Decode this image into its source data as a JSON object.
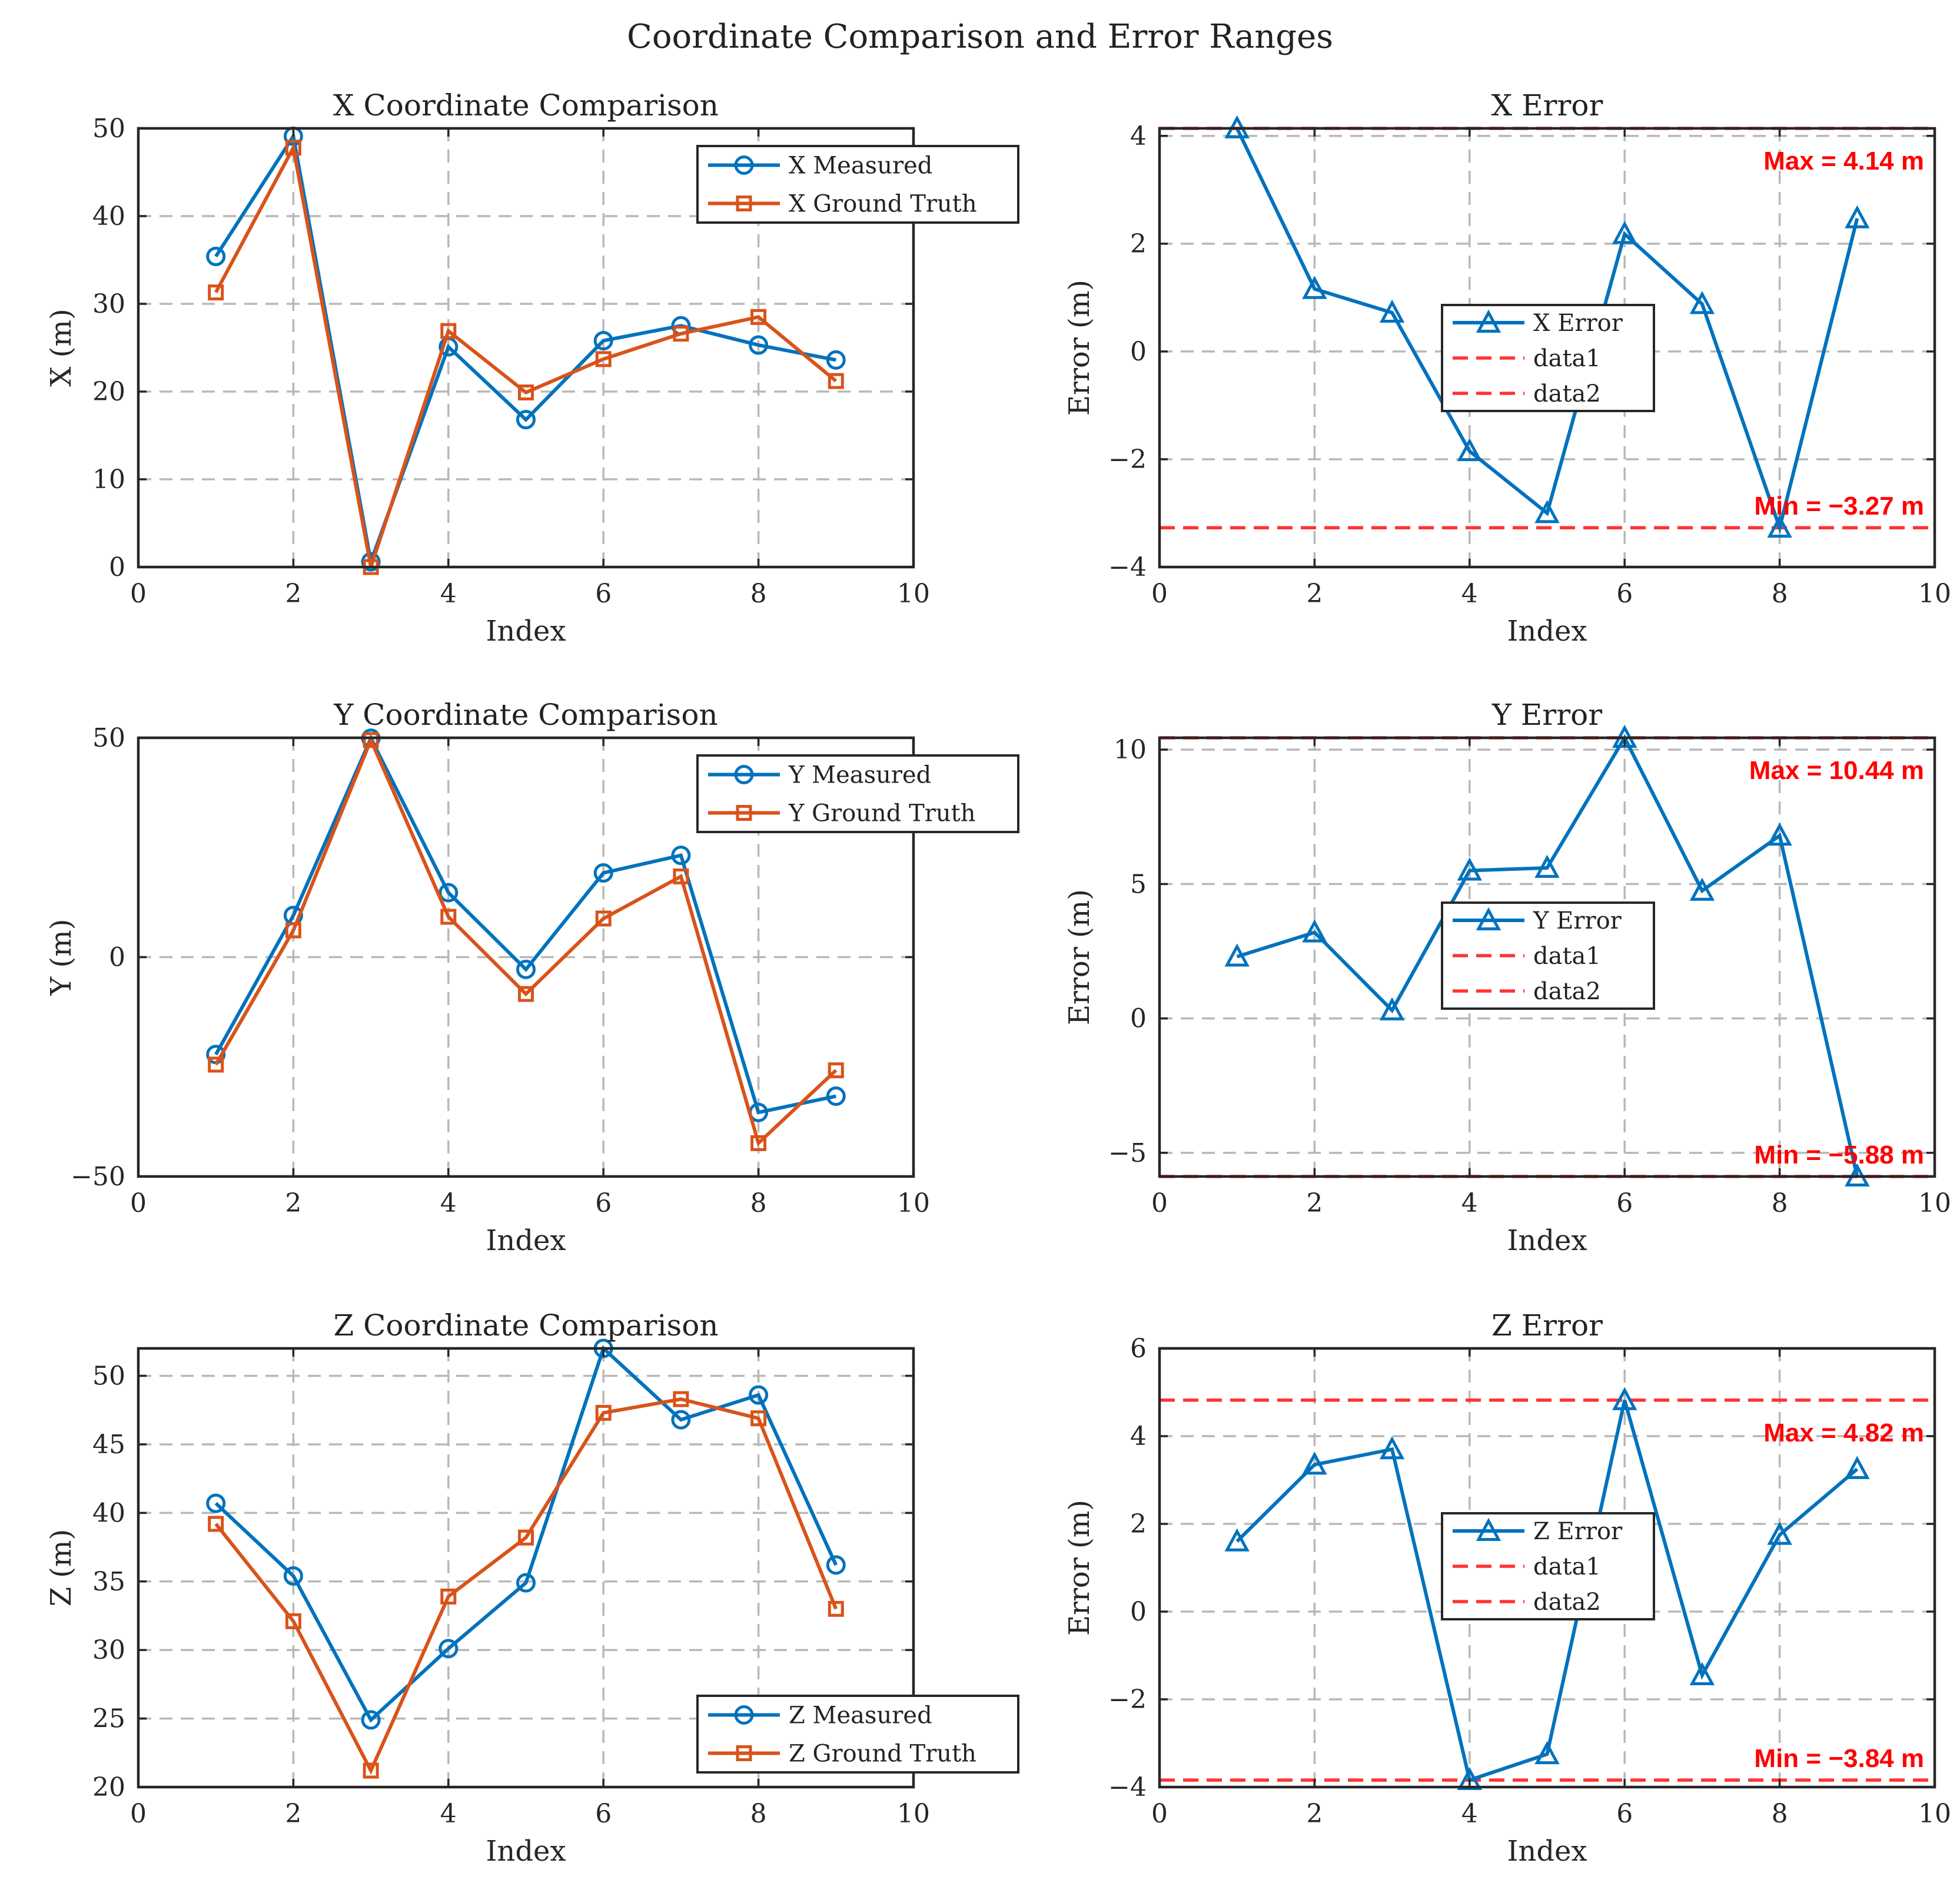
{
  "figure_title": "Coordinate Comparison and Error Ranges",
  "colors": {
    "measured": "#0072BD",
    "truth": "#D95319",
    "error": "#0072BD",
    "ref": "#ff3333",
    "annot": "#ff0000",
    "grid": "#b8b8b8"
  },
  "chart_data": [
    {
      "id": "x-compare",
      "type": "line",
      "title": "X Coordinate Comparison",
      "xlabel": "Index",
      "ylabel": "X (m)",
      "xlim": [
        0,
        10
      ],
      "ylim": [
        0,
        50
      ],
      "xticks": [
        0,
        2,
        4,
        6,
        8,
        10
      ],
      "yticks": [
        0,
        10,
        20,
        30,
        40,
        50
      ],
      "ytick_labels": [
        "0",
        "10",
        "20",
        "30",
        "40",
        "50"
      ],
      "legend_position": "top-right",
      "x": [
        1,
        2,
        3,
        4,
        5,
        6,
        7,
        8,
        9
      ],
      "series": [
        {
          "name": "X Measured",
          "marker": "circle",
          "color": "#0072BD",
          "values": [
            35.4,
            49.1,
            0.6,
            25.1,
            16.8,
            25.8,
            27.5,
            25.3,
            23.6
          ]
        },
        {
          "name": "X Ground Truth",
          "marker": "square",
          "color": "#D95319",
          "values": [
            31.3,
            47.8,
            0.0,
            26.9,
            19.9,
            23.7,
            26.6,
            28.5,
            21.2
          ]
        }
      ]
    },
    {
      "id": "x-error",
      "type": "line",
      "title": "X Error",
      "xlabel": "Index",
      "ylabel": "Error (m)",
      "xlim": [
        0,
        10
      ],
      "ylim": [
        -4,
        4.14
      ],
      "xticks": [
        0,
        2,
        4,
        6,
        8,
        10
      ],
      "yticks": [
        -4,
        -2,
        0,
        2,
        4
      ],
      "ytick_labels": [
        "−4",
        "−2",
        "0",
        "2",
        "4"
      ],
      "legend_position": "center",
      "x": [
        1,
        2,
        3,
        4,
        5,
        6,
        7,
        8,
        9
      ],
      "series": [
        {
          "name": "X Error",
          "marker": "triangle",
          "color": "#0072BD",
          "values": [
            4.14,
            1.16,
            0.72,
            -1.85,
            -3.0,
            2.18,
            0.88,
            -3.27,
            2.47
          ]
        },
        {
          "name": "data1",
          "dashed": true,
          "color": "#ff3333",
          "value": 4.14
        },
        {
          "name": "data2",
          "dashed": true,
          "color": "#ff3333",
          "value": -3.27
        }
      ],
      "max_label": "Max = 4.14 m",
      "min_label": "Min = −3.27 m"
    },
    {
      "id": "y-compare",
      "type": "line",
      "title": "Y Coordinate Comparison",
      "xlabel": "Index",
      "ylabel": "Y (m)",
      "xlim": [
        0,
        10
      ],
      "ylim": [
        -50,
        50
      ],
      "xticks": [
        0,
        2,
        4,
        6,
        8,
        10
      ],
      "yticks": [
        -50,
        0,
        50
      ],
      "ytick_labels": [
        "−50",
        "0",
        "50"
      ],
      "legend_position": "top-right",
      "x": [
        1,
        2,
        3,
        4,
        5,
        6,
        7,
        8,
        9
      ],
      "series": [
        {
          "name": "Y Measured",
          "marker": "circle",
          "color": "#0072BD",
          "values": [
            -22.2,
            9.5,
            49.9,
            14.7,
            -2.8,
            19.2,
            23.2,
            -35.4,
            -31.7
          ]
        },
        {
          "name": "Y Ground Truth",
          "marker": "square",
          "color": "#D95319",
          "values": [
            -24.5,
            6.1,
            49.5,
            9.2,
            -8.4,
            8.8,
            18.4,
            -42.4,
            -25.8
          ]
        }
      ]
    },
    {
      "id": "y-error",
      "type": "line",
      "title": "Y Error",
      "xlabel": "Index",
      "ylabel": "Error (m)",
      "xlim": [
        0,
        10
      ],
      "ylim": [
        -5.88,
        10.44
      ],
      "xticks": [
        0,
        2,
        4,
        6,
        8,
        10
      ],
      "yticks": [
        -5,
        0,
        5,
        10
      ],
      "ytick_labels": [
        "−5",
        "0",
        "5",
        "10"
      ],
      "legend_position": "center",
      "x": [
        1,
        2,
        3,
        4,
        5,
        6,
        7,
        8,
        9
      ],
      "series": [
        {
          "name": "Y Error",
          "marker": "triangle",
          "color": "#0072BD",
          "values": [
            2.3,
            3.2,
            0.3,
            5.5,
            5.6,
            10.44,
            4.75,
            6.8,
            -5.88
          ]
        },
        {
          "name": "data1",
          "dashed": true,
          "color": "#ff3333",
          "value": 10.44
        },
        {
          "name": "data2",
          "dashed": true,
          "color": "#ff3333",
          "value": -5.88
        }
      ],
      "max_label": "Max = 10.44 m",
      "min_label": "Min = −5.88 m"
    },
    {
      "id": "z-compare",
      "type": "line",
      "title": "Z Coordinate Comparison",
      "xlabel": "Index",
      "ylabel": "Z (m)",
      "xlim": [
        0,
        10
      ],
      "ylim": [
        20,
        52
      ],
      "xticks": [
        0,
        2,
        4,
        6,
        8,
        10
      ],
      "yticks": [
        20,
        25,
        30,
        35,
        40,
        45,
        50
      ],
      "ytick_labels": [
        "20",
        "25",
        "30",
        "35",
        "40",
        "45",
        "50"
      ],
      "legend_position": "bottom-right",
      "x": [
        1,
        2,
        3,
        4,
        5,
        6,
        7,
        8,
        9
      ],
      "series": [
        {
          "name": "Z Measured",
          "marker": "circle",
          "color": "#0072BD",
          "values": [
            40.7,
            35.4,
            24.9,
            30.1,
            34.9,
            52.0,
            46.8,
            48.6,
            36.2
          ]
        },
        {
          "name": "Z Ground Truth",
          "marker": "square",
          "color": "#D95319",
          "values": [
            39.2,
            32.1,
            21.2,
            33.9,
            38.2,
            47.3,
            48.3,
            46.9,
            33.0
          ]
        }
      ]
    },
    {
      "id": "z-error",
      "type": "line",
      "title": "Z Error",
      "xlabel": "Index",
      "ylabel": "Error (m)",
      "xlim": [
        0,
        10
      ],
      "ylim": [
        -4,
        6
      ],
      "xticks": [
        0,
        2,
        4,
        6,
        8,
        10
      ],
      "yticks": [
        -4,
        -2,
        0,
        2,
        4,
        6
      ],
      "ytick_labels": [
        "−4",
        "−2",
        "0",
        "2",
        "4",
        "6"
      ],
      "legend_position": "center",
      "x": [
        1,
        2,
        3,
        4,
        5,
        6,
        7,
        8,
        9
      ],
      "series": [
        {
          "name": "Z Error",
          "marker": "triangle",
          "color": "#0072BD",
          "values": [
            1.6,
            3.35,
            3.7,
            -3.84,
            -3.25,
            4.82,
            -1.45,
            1.75,
            3.25
          ]
        },
        {
          "name": "data1",
          "dashed": true,
          "color": "#ff3333",
          "value": 4.82
        },
        {
          "name": "data2",
          "dashed": true,
          "color": "#ff3333",
          "value": -3.84
        }
      ],
      "max_label": "Max = 4.82 m",
      "min_label": "Min = −3.84 m"
    }
  ]
}
